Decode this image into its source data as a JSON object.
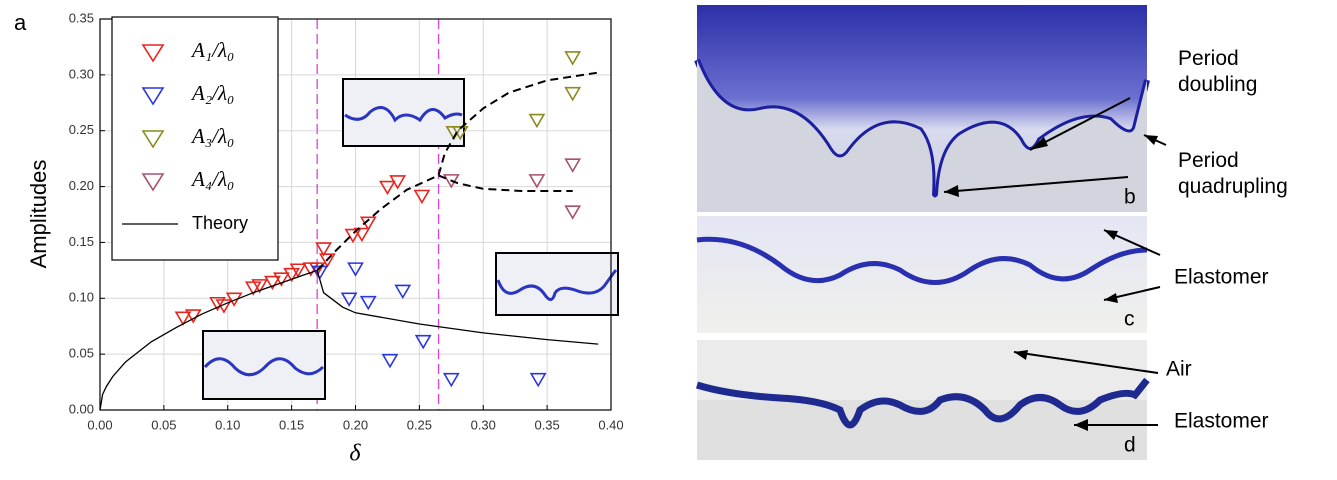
{
  "chart_data": {
    "type": "scatter",
    "panel_label": "a",
    "x_label": "δ",
    "y_label": "Amplitudes",
    "xlim": [
      0,
      0.4
    ],
    "ylim": [
      0,
      0.35
    ],
    "xticks": [
      {
        "value": 0,
        "label": "0.00"
      },
      {
        "value": 0.05,
        "label": "0.05"
      },
      {
        "value": 0.1,
        "label": "0.10"
      },
      {
        "value": 0.15,
        "label": "0.15"
      },
      {
        "value": 0.2,
        "label": "0.20"
      },
      {
        "value": 0.25,
        "label": "0.25"
      },
      {
        "value": 0.3,
        "label": "0.30"
      },
      {
        "value": 0.35,
        "label": "0.35"
      },
      {
        "value": 0.4,
        "label": "0.40"
      }
    ],
    "yticks": [
      {
        "value": 0,
        "label": "0.00"
      },
      {
        "value": 0.05,
        "label": "0.05"
      },
      {
        "value": 0.1,
        "label": "0.10"
      },
      {
        "value": 0.15,
        "label": "0.15"
      },
      {
        "value": 0.2,
        "label": "0.20"
      },
      {
        "value": 0.25,
        "label": "0.25"
      },
      {
        "value": 0.3,
        "label": "0.30"
      },
      {
        "value": 0.35,
        "label": "0.35"
      }
    ],
    "grid": true,
    "legend": "upper left",
    "vlines": [
      0.17,
      0.265
    ],
    "vline_color": "#e040e0",
    "series": [
      {
        "name": "A₁/λ₀",
        "color": "#e8251f",
        "marker": "triangle-down",
        "x": [
          0.065,
          0.073,
          0.092,
          0.097,
          0.105,
          0.12,
          0.125,
          0.135,
          0.142,
          0.15,
          0.155,
          0.165,
          0.17,
          0.175,
          0.178,
          0.198,
          0.205,
          0.21,
          0.225,
          0.233,
          0.252
        ],
        "values": [
          0.083,
          0.085,
          0.096,
          0.094,
          0.1,
          0.11,
          0.112,
          0.115,
          0.118,
          0.122,
          0.126,
          0.127,
          0.127,
          0.145,
          0.135,
          0.157,
          0.158,
          0.168,
          0.2,
          0.205,
          0.192
        ]
      },
      {
        "name": "A₂/λ₀",
        "color": "#2a35e0",
        "marker": "triangle-down",
        "x": [
          0.172,
          0.195,
          0.2,
          0.21,
          0.227,
          0.237,
          0.253,
          0.275,
          0.343
        ],
        "values": [
          0.124,
          0.1,
          0.127,
          0.097,
          0.045,
          0.107,
          0.062,
          0.028,
          0.028
        ]
      },
      {
        "name": "A₃/λ₀",
        "color": "#8c8a1e",
        "marker": "triangle-down",
        "x": [
          0.277,
          0.282,
          0.342,
          0.37,
          0.37
        ],
        "values": [
          0.249,
          0.249,
          0.26,
          0.316,
          0.284
        ]
      },
      {
        "name": "A₄/λ₀",
        "color": "#a8506e",
        "marker": "triangle-down",
        "x": [
          0.275,
          0.342,
          0.37,
          0.37
        ],
        "values": [
          0.206,
          0.206,
          0.22,
          0.178
        ]
      },
      {
        "name": "Theory",
        "color": "#000000",
        "marker": "line",
        "x": [
          0,
          0.002,
          0.005,
          0.01,
          0.02,
          0.04,
          0.06,
          0.08,
          0.1,
          0.12,
          0.14,
          0.16,
          0.17,
          0.175,
          0.19,
          0.2,
          0.25,
          0.3,
          0.35,
          0.39
        ],
        "values": [
          0,
          0.014,
          0.021,
          0.03,
          0.043,
          0.061,
          0.074,
          0.086,
          0.096,
          0.105,
          0.113,
          0.121,
          0.125,
          0.105,
          0.092,
          0.087,
          0.077,
          0.069,
          0.063,
          0.059
        ]
      },
      {
        "color": "#000000",
        "marker": "dashed",
        "x": [
          0.17,
          0.185,
          0.2,
          0.22,
          0.24,
          0.265,
          0.27,
          0.28,
          0.3,
          0.32,
          0.35,
          0.39
        ],
        "values": [
          0.125,
          0.143,
          0.16,
          0.18,
          0.197,
          0.21,
          0.23,
          0.25,
          0.27,
          0.284,
          0.295,
          0.302
        ]
      },
      {
        "color": "#000000",
        "marker": "dashed",
        "x": [
          0.265,
          0.28,
          0.3,
          0.33,
          0.37
        ],
        "values": [
          0.21,
          0.203,
          0.198,
          0.196,
          0.196
        ]
      }
    ]
  },
  "photos": {
    "b": {
      "label": "b",
      "annotations": [
        "Period\ndoubling",
        "Period\nquadrupling"
      ]
    },
    "c": {
      "label": "c",
      "annotations": [
        "Elastomer"
      ]
    },
    "d": {
      "label": "d",
      "annotations": [
        "Air",
        "Elastomer"
      ]
    }
  }
}
